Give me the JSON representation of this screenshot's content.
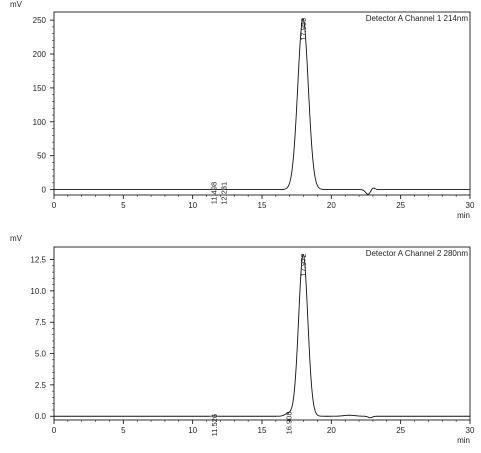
{
  "chart_data": [
    {
      "type": "line",
      "title": "Detector A Channel 1 214nm",
      "ylabel": "mV",
      "xlabel": "min",
      "xlim": [
        0,
        30
      ],
      "ylim": [
        -8,
        262
      ],
      "x_ticks": [
        0,
        5,
        10,
        15,
        20,
        25,
        30
      ],
      "y_ticks": [
        0,
        50,
        100,
        150,
        200,
        250
      ],
      "y_tick_labels": [
        "0",
        "50",
        "100",
        "150",
        "200",
        "250"
      ],
      "grid": false,
      "baseline": 0,
      "peaks": [
        {
          "rt": 11.498,
          "height": 0.4,
          "width": 0.12
        },
        {
          "rt": 12.231,
          "height": 0.6,
          "width": 0.12
        },
        {
          "rt": 17.959,
          "height": 252,
          "width": 0.38
        },
        {
          "rt": 22.65,
          "height": -7,
          "width": 0.18
        },
        {
          "rt": 23.0,
          "height": 3,
          "width": 0.14
        }
      ],
      "peak_labels": [
        {
          "rt": 11.498,
          "label": "11.498",
          "y": 10
        },
        {
          "rt": 12.231,
          "label": "12.231",
          "y": 10
        },
        {
          "rt": 17.959,
          "label": "17.959",
          "y": 252
        }
      ]
    },
    {
      "type": "line",
      "title": "Detector A Channel 2 280nm",
      "ylabel": "mV",
      "xlabel": "min",
      "xlim": [
        0,
        30
      ],
      "ylim": [
        -0.3,
        13.5
      ],
      "x_ticks": [
        0,
        5,
        10,
        15,
        20,
        25,
        30
      ],
      "y_ticks": [
        0,
        2.5,
        5,
        7.5,
        10,
        12.5
      ],
      "y_tick_labels": [
        "0.0",
        "2.5",
        "5.0",
        "7.5",
        "10.0",
        "12.5"
      ],
      "grid": false,
      "baseline": 0,
      "peaks": [
        {
          "rt": 11.526,
          "height": 0.03,
          "width": 0.12
        },
        {
          "rt": 16.908,
          "height": 0.22,
          "width": 0.25
        },
        {
          "rt": 17.972,
          "height": 12.9,
          "width": 0.33
        },
        {
          "rt": 21.3,
          "height": 0.08,
          "width": 0.4
        },
        {
          "rt": 22.8,
          "height": -0.12,
          "width": 0.15
        }
      ],
      "peak_labels": [
        {
          "rt": 11.526,
          "label": "11.526",
          "y": 0.1
        },
        {
          "rt": 16.908,
          "label": "16.908",
          "y": 0.3
        },
        {
          "rt": 17.972,
          "label": "17.972",
          "y": 12.9
        }
      ]
    }
  ]
}
